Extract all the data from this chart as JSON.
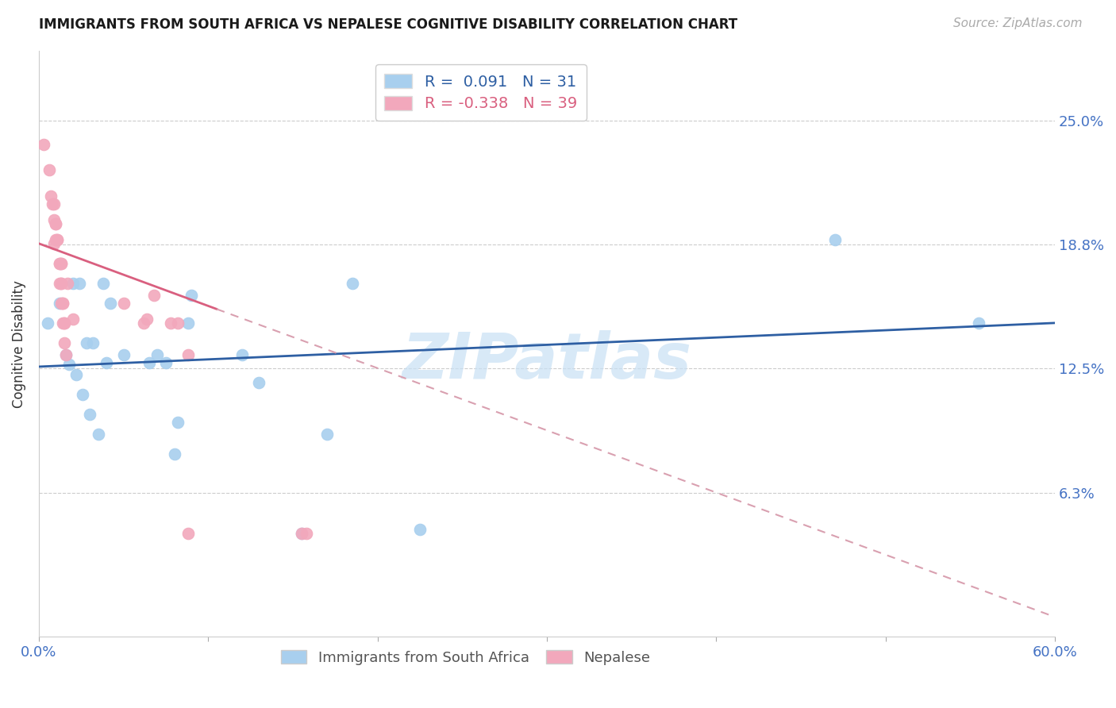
{
  "title": "IMMIGRANTS FROM SOUTH AFRICA VS NEPALESE COGNITIVE DISABILITY CORRELATION CHART",
  "source": "Source: ZipAtlas.com",
  "ylabel": "Cognitive Disability",
  "ytick_vals": [
    0.0625,
    0.125,
    0.1875,
    0.25
  ],
  "ytick_labels": [
    "6.3%",
    "12.5%",
    "18.8%",
    "25.0%"
  ],
  "xlim": [
    0.0,
    0.6
  ],
  "ylim": [
    -0.01,
    0.285
  ],
  "legend_line1": "R =  0.091   N = 31",
  "legend_line2": "R = -0.338   N = 39",
  "blue_scatter_x": [
    0.005,
    0.012,
    0.016,
    0.018,
    0.02,
    0.022,
    0.024,
    0.026,
    0.028,
    0.03,
    0.032,
    0.035,
    0.038,
    0.04,
    0.042,
    0.05,
    0.065,
    0.07,
    0.075,
    0.08,
    0.082,
    0.088,
    0.09,
    0.12,
    0.13,
    0.155,
    0.17,
    0.185,
    0.225,
    0.47,
    0.555
  ],
  "blue_scatter_y": [
    0.148,
    0.158,
    0.132,
    0.127,
    0.168,
    0.122,
    0.168,
    0.112,
    0.138,
    0.102,
    0.138,
    0.092,
    0.168,
    0.128,
    0.158,
    0.132,
    0.128,
    0.132,
    0.128,
    0.082,
    0.098,
    0.148,
    0.162,
    0.132,
    0.118,
    0.042,
    0.092,
    0.168,
    0.044,
    0.19,
    0.148
  ],
  "pink_scatter_x": [
    0.003,
    0.006,
    0.007,
    0.008,
    0.009,
    0.009,
    0.009,
    0.01,
    0.01,
    0.01,
    0.011,
    0.011,
    0.012,
    0.012,
    0.012,
    0.013,
    0.013,
    0.013,
    0.013,
    0.013,
    0.014,
    0.014,
    0.014,
    0.015,
    0.015,
    0.015,
    0.016,
    0.017,
    0.02,
    0.05,
    0.062,
    0.064,
    0.068,
    0.078,
    0.082,
    0.088,
    0.088,
    0.155,
    0.158
  ],
  "pink_scatter_y": [
    0.238,
    0.225,
    0.212,
    0.208,
    0.208,
    0.2,
    0.188,
    0.198,
    0.198,
    0.19,
    0.19,
    0.19,
    0.178,
    0.178,
    0.168,
    0.178,
    0.178,
    0.168,
    0.168,
    0.158,
    0.158,
    0.158,
    0.148,
    0.148,
    0.148,
    0.138,
    0.132,
    0.168,
    0.15,
    0.158,
    0.148,
    0.15,
    0.162,
    0.148,
    0.148,
    0.132,
    0.042,
    0.042,
    0.042
  ],
  "blue_line": [
    [
      0.0,
      0.6
    ],
    [
      0.126,
      0.148
    ]
  ],
  "pink_solid_line": [
    [
      0.0,
      0.105
    ],
    [
      0.188,
      0.155
    ]
  ],
  "pink_dashed_line": [
    [
      0.105,
      0.6
    ],
    [
      0.155,
      0.0
    ]
  ],
  "blue_color": "#A8CFEE",
  "pink_color": "#F2A8BC",
  "blue_line_color": "#2E5FA3",
  "pink_solid_color": "#D95F7F",
  "pink_dashed_color": "#D9A0B0",
  "watermark_text": "ZIPatlas",
  "watermark_color": "#C8E0F4",
  "background_color": "#FFFFFF",
  "grid_color": "#CCCCCC",
  "title_fontsize": 12,
  "axis_label_fontsize": 12,
  "tick_fontsize": 13,
  "legend_fontsize": 14,
  "bottom_legend_labels": [
    "Immigrants from South Africa",
    "Nepalese"
  ]
}
